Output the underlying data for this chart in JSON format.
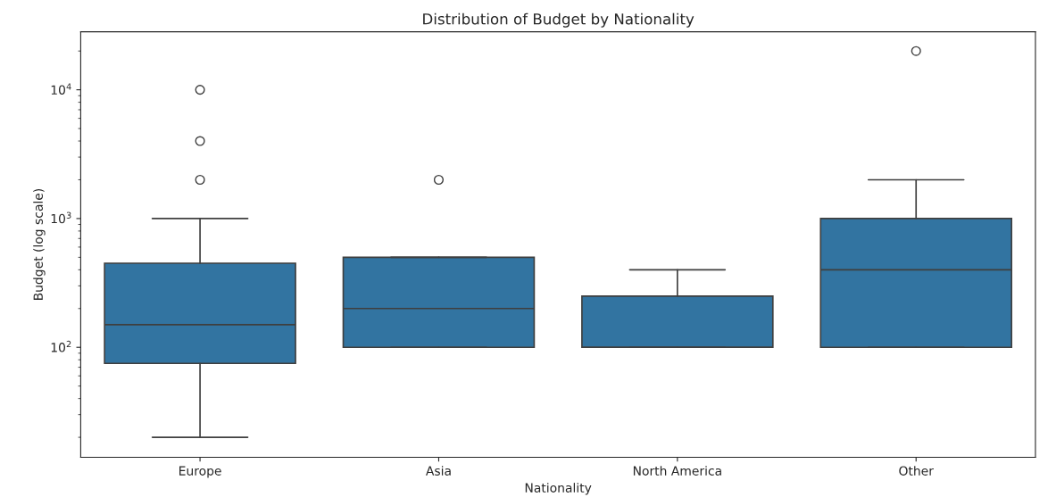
{
  "chart_data": {
    "type": "box",
    "title": "Distribution of Budget by Nationality",
    "xlabel": "Nationality",
    "ylabel": "Budget (log scale)",
    "categories": [
      "Europe",
      "Asia",
      "North America",
      "Other"
    ],
    "color": "#3274a1",
    "boxes": [
      {
        "low": 20,
        "q1": 75,
        "median": 150,
        "q3": 450,
        "high": 1000,
        "outliers": [
          10000,
          4000,
          2000
        ]
      },
      {
        "low": 100,
        "q1": 100,
        "median": 200,
        "q3": 500,
        "high": 500,
        "outliers": [
          2000
        ]
      },
      {
        "low": 100,
        "q1": 100,
        "median": 100,
        "q3": 250,
        "high": 400
      },
      {
        "low": 100,
        "q1": 100,
        "median": 400,
        "q3": 1000,
        "high": 2000,
        "outliers": [
          20000
        ]
      }
    ],
    "log": "y",
    "ylim": [
      14,
      28200
    ],
    "yticks": [
      {
        "value": 100,
        "label": "10$^{2}$"
      },
      {
        "value": 1000,
        "label": "10$^{3}$"
      },
      {
        "value": 10000,
        "label": "10$^{4}$"
      }
    ],
    "grid": false
  }
}
